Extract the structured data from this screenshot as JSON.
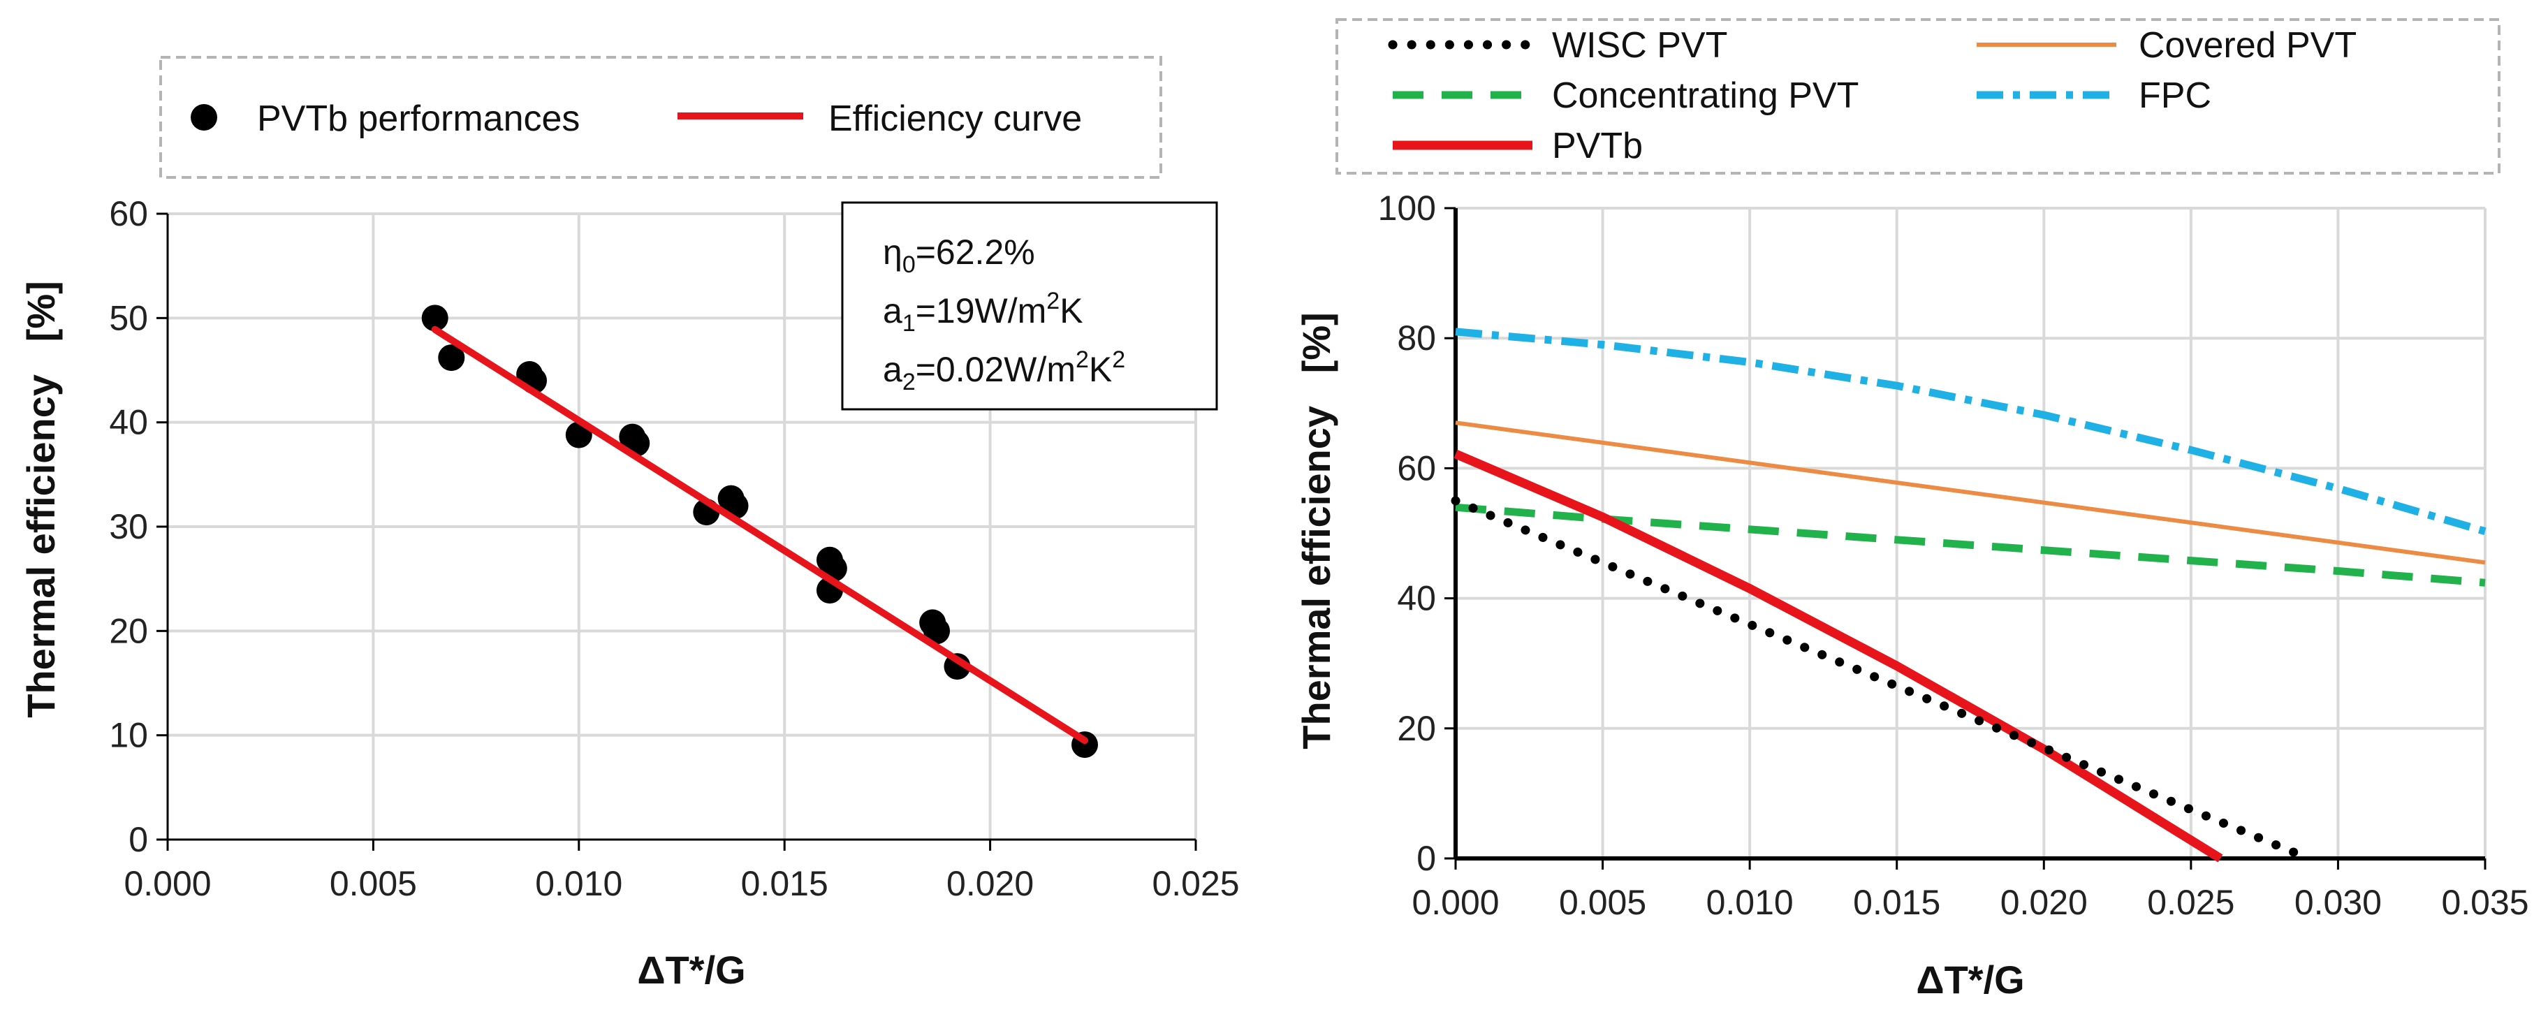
{
  "chart_data": [
    {
      "type": "scatter",
      "title": "",
      "xlabel": "ΔT*/G",
      "ylabel": "Thermal efficiency   [%]",
      "xlim": [
        0,
        0.025
      ],
      "ylim": [
        0,
        60
      ],
      "x_ticks": [
        "0.000",
        "0.005",
        "0.010",
        "0.015",
        "0.020",
        "0.025"
      ],
      "y_ticks": [
        "0",
        "10",
        "20",
        "30",
        "40",
        "50",
        "60"
      ],
      "grid": true,
      "legend_position": "top",
      "legend": {
        "points_label": "PVTb performances",
        "curve_label": "Efficiency curve"
      },
      "colors": {
        "points": "#000000",
        "curve": "#e8141b",
        "grid": "#d9d9d9"
      },
      "points": [
        [
          0.0065,
          50.0
        ],
        [
          0.0069,
          46.2
        ],
        [
          0.0088,
          44.6
        ],
        [
          0.0089,
          44.0
        ],
        [
          0.01,
          38.8
        ],
        [
          0.0113,
          38.6
        ],
        [
          0.0114,
          38.0
        ],
        [
          0.0131,
          31.4
        ],
        [
          0.0137,
          32.7
        ],
        [
          0.0138,
          32.0
        ],
        [
          0.0161,
          26.8
        ],
        [
          0.0162,
          26.0
        ],
        [
          0.0161,
          23.9
        ],
        [
          0.0186,
          20.8
        ],
        [
          0.0187,
          20.0
        ],
        [
          0.0192,
          16.6
        ],
        [
          0.0223,
          9.1
        ]
      ],
      "curve": {
        "name": "Efficiency curve",
        "x": [
          0.0065,
          0.0223
        ],
        "y": [
          48.9,
          9.5
        ]
      },
      "annotation": {
        "eta": {
          "base": "η",
          "sub": "0",
          "rest": "=62.2%"
        },
        "a1": {
          "base": "a",
          "sub": "1",
          "mid": "=19W/m",
          "sup": "2",
          "rest": "K"
        },
        "a2": {
          "base": "a",
          "sub": "2",
          "mid": "=0.02W/m",
          "sup": "2",
          "rest": "K",
          "sup2": "2"
        }
      }
    },
    {
      "type": "line",
      "title": "",
      "xlabel": "ΔT*/G",
      "ylabel": "Thermal efficiency   [%]",
      "xlim": [
        0,
        0.035
      ],
      "ylim": [
        0,
        100
      ],
      "x_ticks": [
        "0.000",
        "0.005",
        "0.010",
        "0.015",
        "0.020",
        "0.025",
        "0.030",
        "0.035"
      ],
      "y_ticks": [
        "0",
        "20",
        "40",
        "60",
        "80",
        "100"
      ],
      "grid": true,
      "legend_position": "top",
      "series": [
        {
          "name": "WISC PVT",
          "color": "#000000",
          "style": "dotted",
          "x": [
            0,
            0.005,
            0.01,
            0.015,
            0.02,
            0.025,
            0.029
          ],
          "y": [
            55,
            45.5,
            36,
            26.5,
            17,
            7.5,
            0
          ]
        },
        {
          "name": "Covered PVT",
          "color": "#ed8b45",
          "style": "solid",
          "x": [
            0,
            0.035
          ],
          "y": [
            67,
            45.5
          ]
        },
        {
          "name": "Concentrating PVT",
          "color": "#22b24c",
          "style": "dashed",
          "x": [
            0,
            0.005,
            0.01,
            0.015,
            0.02,
            0.025,
            0.03,
            0.035
          ],
          "y": [
            54,
            52.2,
            50.6,
            49,
            47.4,
            45.8,
            44.2,
            42.4
          ]
        },
        {
          "name": "FPC",
          "color": "#1fb1e6",
          "style": "dashdot",
          "x": [
            0,
            0.005,
            0.01,
            0.015,
            0.02,
            0.025,
            0.03,
            0.035
          ],
          "y": [
            81,
            79,
            76.3,
            72.7,
            68.2,
            62.8,
            56.9,
            50.3
          ]
        },
        {
          "name": "PVTb",
          "color": "#e8141b",
          "style": "solid-thick",
          "x": [
            0,
            0.005,
            0.01,
            0.015,
            0.02,
            0.026
          ],
          "y": [
            62.2,
            52.5,
            41.5,
            29.6,
            16.8,
            0
          ]
        }
      ]
    }
  ]
}
